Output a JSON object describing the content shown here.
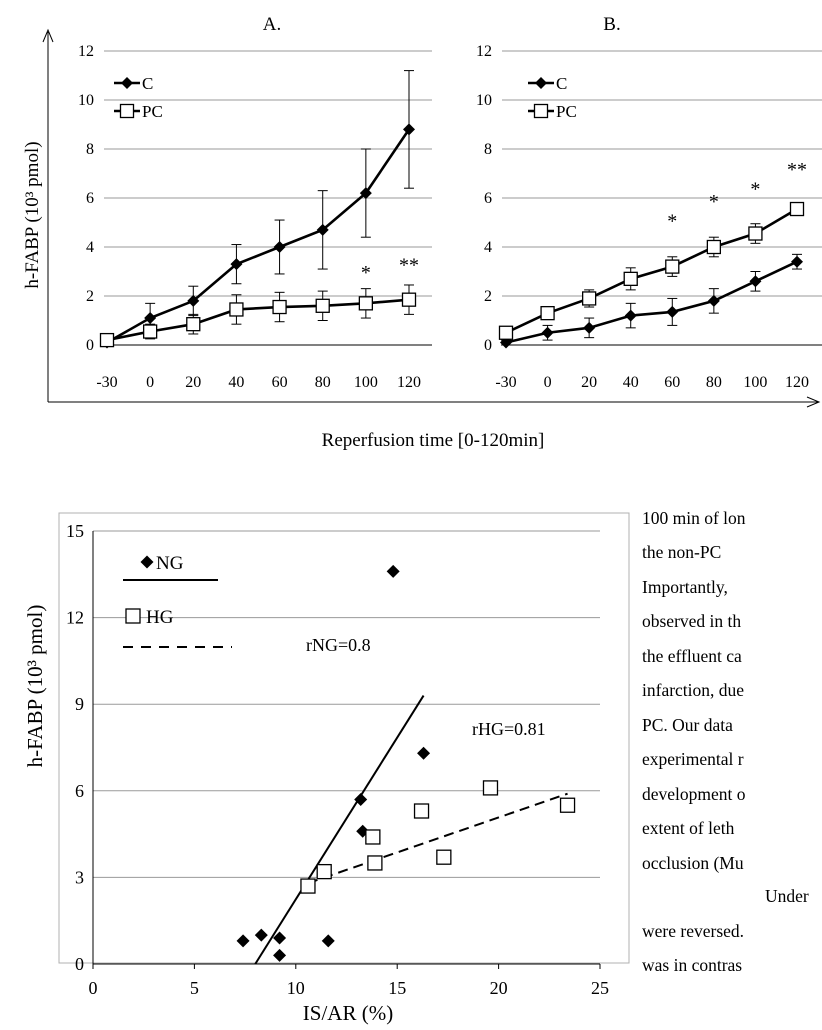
{
  "top_figure": {
    "panel_a_title": "A.",
    "panel_b_title": "B.",
    "y_axis_label": "h-FABP (10³ pmol)",
    "x_axis_label": "Reperfusion time [0-120min]"
  },
  "bottom_figure": {
    "legend": {
      "ng": "NG",
      "hg": "HG"
    },
    "r_ng": "rNG=0.8",
    "r_hg": "rHG=0.81"
  },
  "chart_data": [
    {
      "type": "line",
      "title": "A.",
      "ylabel": "h-FABP (10³ pmol)",
      "xlabel": "Reperfusion time [0-120min]",
      "categories": [
        "-30",
        "0",
        "20",
        "40",
        "60",
        "80",
        "100",
        "120"
      ],
      "ylim": [
        0,
        12
      ],
      "yticks": [
        0,
        2,
        4,
        6,
        8,
        10,
        12
      ],
      "grid": true,
      "legend_position": "top-left",
      "series": [
        {
          "name": "C",
          "marker": "filled-diamond",
          "values": [
            0.1,
            1.1,
            1.8,
            3.3,
            4.0,
            4.7,
            6.2,
            8.8
          ],
          "errors": [
            0.1,
            0.6,
            0.6,
            0.8,
            1.1,
            1.6,
            1.8,
            2.4
          ]
        },
        {
          "name": "PC",
          "marker": "open-square",
          "values": [
            0.2,
            0.55,
            0.85,
            1.45,
            1.55,
            1.6,
            1.7,
            1.85
          ],
          "errors": [
            0.1,
            0.3,
            0.4,
            0.6,
            0.6,
            0.6,
            0.6,
            0.6
          ]
        }
      ],
      "annotations": [
        {
          "text": "*",
          "category": "100",
          "y": 2.7
        },
        {
          "text": "**",
          "category": "120",
          "y": 3.0
        }
      ]
    },
    {
      "type": "line",
      "title": "B.",
      "categories": [
        "-30",
        "0",
        "20",
        "40",
        "60",
        "80",
        "100",
        "120"
      ],
      "ylim": [
        0,
        12
      ],
      "yticks": [
        0,
        2,
        4,
        6,
        8,
        10,
        12
      ],
      "grid": true,
      "legend_position": "top-left",
      "series": [
        {
          "name": "C",
          "marker": "filled-diamond",
          "values": [
            0.1,
            0.5,
            0.7,
            1.2,
            1.35,
            1.8,
            2.6,
            3.4
          ],
          "errors": [
            0.1,
            0.3,
            0.4,
            0.5,
            0.55,
            0.5,
            0.4,
            0.3
          ]
        },
        {
          "name": "PC",
          "marker": "open-square",
          "values": [
            0.5,
            1.3,
            1.9,
            2.7,
            3.2,
            4.0,
            4.55,
            5.55
          ],
          "errors": [
            0.1,
            0.2,
            0.35,
            0.45,
            0.4,
            0.4,
            0.4,
            0.2
          ]
        }
      ],
      "annotations": [
        {
          "text": "*",
          "category": "60",
          "y": 4.8
        },
        {
          "text": "*",
          "category": "80",
          "y": 5.6
        },
        {
          "text": "*",
          "category": "100",
          "y": 6.1
        },
        {
          "text": "**",
          "category": "120",
          "y": 6.9
        }
      ]
    },
    {
      "type": "scatter",
      "xlabel": "IS/AR (%)",
      "ylabel": "h-FABP (10³ pmol)",
      "xlim": [
        0,
        25
      ],
      "ylim": [
        0,
        15
      ],
      "xticks": [
        0,
        5,
        10,
        15,
        20,
        25
      ],
      "yticks": [
        0,
        3,
        6,
        9,
        12,
        15
      ],
      "grid": true,
      "legend_position": "top-left",
      "series": [
        {
          "name": "NG",
          "marker": "filled-diamond",
          "x": [
            7.4,
            8.3,
            9.2,
            9.2,
            11.6,
            13.2,
            13.3,
            14.8,
            16.3
          ],
          "y": [
            0.8,
            1.0,
            0.3,
            0.9,
            0.8,
            5.7,
            4.6,
            13.6,
            7.3
          ],
          "trendline": {
            "style": "solid",
            "x": [
              8.0,
              16.3
            ],
            "y": [
              0.0,
              9.3
            ]
          }
        },
        {
          "name": "HG",
          "marker": "open-square",
          "x": [
            10.6,
            11.4,
            13.9,
            13.8,
            16.2,
            17.3,
            19.6,
            23.4
          ],
          "y": [
            2.7,
            3.2,
            3.5,
            4.4,
            5.3,
            3.7,
            6.1,
            5.5
          ],
          "trendline": {
            "style": "dashed",
            "x": [
              10.6,
              23.4
            ],
            "y": [
              2.8,
              5.9
            ]
          }
        }
      ],
      "annotations": [
        {
          "text": "rNG=0.8"
        },
        {
          "text": "rHG=0.81"
        }
      ]
    }
  ],
  "paragraph_lines": [
    "100 min of lon",
    "the   non-PC ",
    "Importantly, ",
    "observed in th",
    "the effluent ca",
    "infarction, due",
    "PC.  Our  data",
    "experimental  r",
    "development  o",
    "extent  of  leth",
    "occlusion (Mu",
    "Under",
    "were reversed.",
    "was  in  contras"
  ]
}
